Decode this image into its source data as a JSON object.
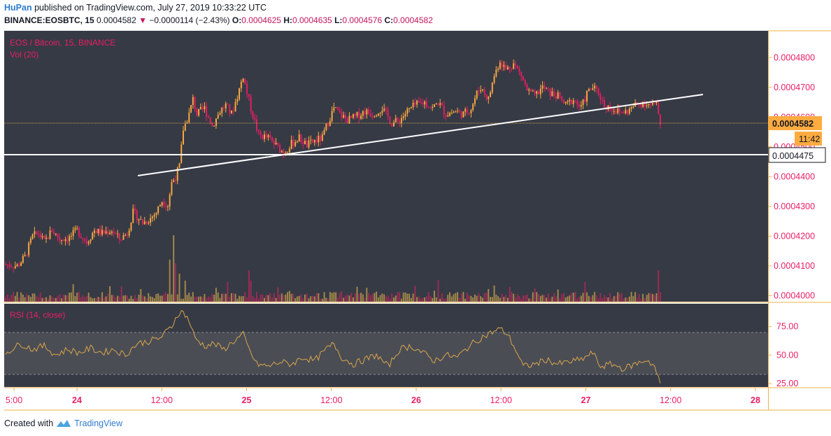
{
  "header": {
    "author": "HuPan",
    "published_text": "published on TradingView.com, July 27, 2019 10:33:22 UTC",
    "symbol": "BINANCE:EOSBTC, 15",
    "last": "0.0004582",
    "change": "−0.0000114 (−2.43%)",
    "o_label": "O:",
    "o": "0.0004625",
    "h_label": "H:",
    "h": "0.0004635",
    "l_label": "L:",
    "l": "0.0004576",
    "c_label": "C:",
    "c": "0.0004582"
  },
  "pane": {
    "title": "EOS / Bitcoin, 15, BINANCE",
    "vol_label": "Vol (20)",
    "rsi_label": "RSI (14, close)"
  },
  "price_badges": {
    "last": "0.0004582",
    "countdown": "11:42",
    "hline": "0.0004475"
  },
  "footer": {
    "created_with": "Created with",
    "brand": "TradingView"
  },
  "colors": {
    "bg": "#363a45",
    "up": "#ffab40",
    "down": "#e91e63",
    "vol_up": "#a58a4a",
    "vol_down": "#9b2c55",
    "rsi_line": "#d8a64a",
    "axis_text": "#e91e63",
    "border": "#f0b14a"
  },
  "chart_data": {
    "type": "candlestick",
    "y_ticks": [
      "0.0004800",
      "0.0004700",
      "0.0004600",
      "0.0004500",
      "0.0004400",
      "0.0004300",
      "0.0004200",
      "0.0004100",
      "0.0004000"
    ],
    "x_ticks": [
      "5:00",
      "24",
      "12:00",
      "25",
      "12:00",
      "26",
      "12:00",
      "27",
      "12:00",
      "28"
    ],
    "ylim": [
      0.000398,
      0.000489
    ],
    "close_path": [
      [
        0,
        0.0004105
      ],
      [
        6,
        0.00041
      ],
      [
        10,
        0.000413
      ],
      [
        14,
        0.00042
      ],
      [
        17,
        0.000421
      ],
      [
        20,
        0.000418
      ],
      [
        24,
        0.000422
      ],
      [
        28,
        0.000419
      ],
      [
        33,
        0.0004195
      ],
      [
        37,
        0.000422
      ],
      [
        42,
        0.000418
      ],
      [
        46,
        0.000422
      ],
      [
        50,
        0.000421
      ],
      [
        55,
        0.000422
      ],
      [
        59,
        0.000419
      ],
      [
        63,
        0.000421
      ],
      [
        66,
        0.000428
      ],
      [
        71,
        0.0004245
      ],
      [
        75,
        0.000426
      ],
      [
        78,
        0.000428
      ],
      [
        81,
        0.000432
      ],
      [
        84,
        0.0004305
      ],
      [
        86,
        0.000438
      ],
      [
        88,
        0.00044
      ],
      [
        90,
        0.0004435
      ],
      [
        92,
        0.000456
      ],
      [
        95,
        0.000461
      ],
      [
        97,
        0.000466
      ],
      [
        99,
        0.000461
      ],
      [
        103,
        0.000463
      ],
      [
        107,
        0.000457
      ],
      [
        111,
        0.000462
      ],
      [
        114,
        0.000464
      ],
      [
        117,
        0.000461
      ],
      [
        120,
        0.000467
      ],
      [
        123,
        0.000474
      ],
      [
        125,
        0.000468
      ],
      [
        127,
        0.000463
      ],
      [
        131,
        0.000454
      ],
      [
        136,
        0.000453
      ],
      [
        140,
        0.0004505
      ],
      [
        144,
        0.000448
      ],
      [
        148,
        0.000451
      ],
      [
        152,
        0.000453
      ],
      [
        156,
        0.0004505
      ],
      [
        160,
        0.000452
      ],
      [
        164,
        0.000453
      ],
      [
        167,
        0.0004585
      ],
      [
        170,
        0.000463
      ],
      [
        173,
        0.000461
      ],
      [
        177,
        0.000459
      ],
      [
        181,
        0.00046
      ],
      [
        186,
        0.000462
      ],
      [
        190,
        0.000461
      ],
      [
        195,
        0.000463
      ],
      [
        200,
        0.000458
      ],
      [
        204,
        0.000459
      ],
      [
        208,
        0.000462
      ],
      [
        212,
        0.000464
      ],
      [
        217,
        0.000465
      ],
      [
        221,
        0.000463
      ],
      [
        224,
        0.000465
      ],
      [
        228,
        0.000461
      ],
      [
        233,
        0.000462
      ],
      [
        237,
        0.000461
      ],
      [
        241,
        0.000463
      ],
      [
        244,
        0.000468
      ],
      [
        246,
        0.00047
      ],
      [
        250,
        0.000466
      ],
      [
        253,
        0.000474
      ],
      [
        256,
        0.000479
      ],
      [
        259,
        0.000476
      ],
      [
        263,
        0.000478
      ],
      [
        267,
        0.000474
      ],
      [
        270,
        0.000469
      ],
      [
        274,
        0.000467
      ],
      [
        278,
        0.00047
      ],
      [
        282,
        0.000468
      ],
      [
        286,
        0.000467
      ],
      [
        290,
        0.000464
      ],
      [
        294,
        0.000466
      ],
      [
        298,
        0.000463
      ],
      [
        301,
        0.000468
      ],
      [
        304,
        0.00047
      ],
      [
        307,
        0.000468
      ],
      [
        310,
        0.000464
      ],
      [
        314,
        0.000463
      ],
      [
        318,
        0.0004615
      ],
      [
        322,
        0.000462
      ],
      [
        326,
        0.000464
      ],
      [
        330,
        0.000465
      ],
      [
        334,
        0.000464
      ],
      [
        337,
        0.000464
      ],
      [
        339,
        0.000458
      ]
    ],
    "series": [
      {
        "name": "Vol (20)",
        "type": "bar"
      },
      {
        "name": "RSI (14, close)",
        "type": "line",
        "levels": [
          70,
          30
        ]
      }
    ],
    "rsi_ticks": [
      "75.00",
      "50.00",
      "25.00"
    ],
    "rsi_ylim": [
      22,
      95
    ],
    "rsi_path": [
      [
        0,
        52
      ],
      [
        8,
        60
      ],
      [
        14,
        55
      ],
      [
        20,
        58
      ],
      [
        26,
        50
      ],
      [
        32,
        55
      ],
      [
        38,
        52
      ],
      [
        44,
        56
      ],
      [
        50,
        52
      ],
      [
        56,
        55
      ],
      [
        62,
        50
      ],
      [
        68,
        60
      ],
      [
        74,
        62
      ],
      [
        80,
        65
      ],
      [
        86,
        75
      ],
      [
        89,
        86
      ],
      [
        92,
        88
      ],
      [
        95,
        80
      ],
      [
        98,
        65
      ],
      [
        103,
        58
      ],
      [
        108,
        60
      ],
      [
        113,
        55
      ],
      [
        118,
        62
      ],
      [
        123,
        68
      ],
      [
        126,
        55
      ],
      [
        130,
        42
      ],
      [
        136,
        40
      ],
      [
        142,
        44
      ],
      [
        148,
        42
      ],
      [
        154,
        48
      ],
      [
        160,
        45
      ],
      [
        166,
        55
      ],
      [
        170,
        60
      ],
      [
        174,
        48
      ],
      [
        180,
        42
      ],
      [
        186,
        46
      ],
      [
        192,
        50
      ],
      [
        198,
        40
      ],
      [
        204,
        55
      ],
      [
        210,
        58
      ],
      [
        216,
        52
      ],
      [
        222,
        45
      ],
      [
        228,
        50
      ],
      [
        234,
        48
      ],
      [
        240,
        58
      ],
      [
        246,
        65
      ],
      [
        252,
        70
      ],
      [
        256,
        73
      ],
      [
        260,
        68
      ],
      [
        264,
        55
      ],
      [
        268,
        40
      ],
      [
        274,
        42
      ],
      [
        280,
        46
      ],
      [
        286,
        42
      ],
      [
        292,
        44
      ],
      [
        298,
        46
      ],
      [
        304,
        52
      ],
      [
        308,
        40
      ],
      [
        314,
        42
      ],
      [
        320,
        38
      ],
      [
        326,
        42
      ],
      [
        332,
        46
      ],
      [
        336,
        40
      ],
      [
        339,
        24
      ]
    ]
  }
}
